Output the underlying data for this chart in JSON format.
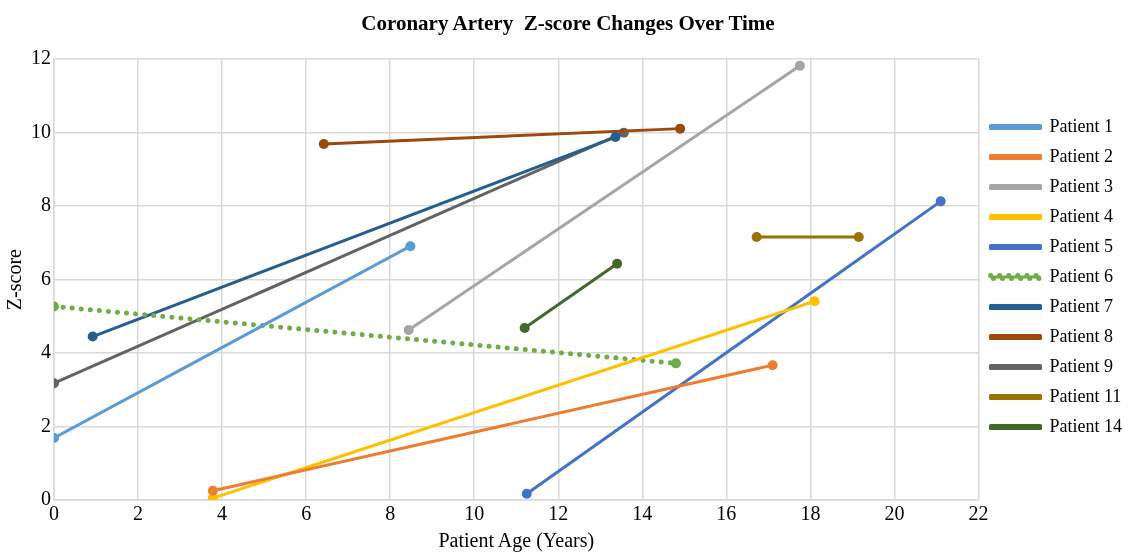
{
  "chart_data": {
    "type": "line",
    "title": "Coronary Artery  Z-score Changes Over Time",
    "xlabel": "Patient Age (Years)",
    "ylabel": "Z-score",
    "xlim": [
      0,
      22
    ],
    "xticks": [
      0,
      2,
      4,
      6,
      8,
      10,
      12,
      14,
      16,
      18,
      20,
      22
    ],
    "ylim": [
      0,
      12
    ],
    "yticks": [
      0,
      2,
      4,
      6,
      8,
      10,
      12
    ],
    "grid": true,
    "legend": "right",
    "marker": "circle",
    "line_style": "solid",
    "series": [
      {
        "name": "Patient 1",
        "color": "#5b9bd5",
        "x": [
          0,
          8.48
        ],
        "values": [
          1.69,
          6.91
        ]
      },
      {
        "name": "Patient 2",
        "color": "#ed7d31",
        "x": [
          3.78,
          17.1
        ],
        "values": [
          0.25,
          3.67
        ]
      },
      {
        "name": "Patient 3",
        "color": "#a5a5a5",
        "x": [
          8.44,
          17.75
        ],
        "values": [
          4.63,
          11.82
        ]
      },
      {
        "name": "Patient 4",
        "color": "#ffc000",
        "x": [
          3.78,
          18.1
        ],
        "values": [
          0.05,
          5.41
        ]
      },
      {
        "name": "Patient 5",
        "color": "#4472c4",
        "x": [
          11.25,
          21.1
        ],
        "values": [
          0.17,
          8.13
        ]
      },
      {
        "name": "Patient 6",
        "color": "#70ad47",
        "line_style": "dotted",
        "x": [
          0,
          14.8
        ],
        "values": [
          5.27,
          3.72
        ]
      },
      {
        "name": "Patient 7",
        "color": "#255e91",
        "x": [
          0.92,
          13.36
        ],
        "values": [
          4.45,
          9.88
        ]
      },
      {
        "name": "Patient 8",
        "color": "#9e480e",
        "x": [
          6.42,
          14.9
        ],
        "values": [
          9.69,
          10.11
        ]
      },
      {
        "name": "Patient 9",
        "color": "#636363",
        "x": [
          0,
          13.56
        ],
        "values": [
          3.18,
          10.0
        ]
      },
      {
        "name": "Patient 11",
        "color": "#997300",
        "x": [
          16.72,
          19.15
        ],
        "values": [
          7.16,
          7.16
        ]
      },
      {
        "name": "Patient 14",
        "color": "#43682b",
        "x": [
          11.2,
          13.4
        ],
        "values": [
          4.68,
          6.43
        ]
      }
    ]
  }
}
